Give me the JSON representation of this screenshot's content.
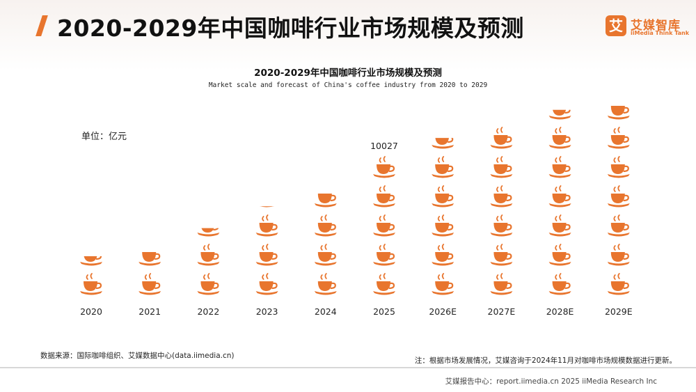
{
  "header": {
    "title": "2020-2029年中国咖啡行业市场规模及预测",
    "logo_mark": "艾",
    "logo_cn": "艾媒智库",
    "logo_en": "iiMedia Think Tank"
  },
  "colors": {
    "accent": "#e8752e",
    "cup": "#e8752e"
  },
  "icons": {
    "cup": "coffee-cup-icon"
  },
  "chart_data": {
    "type": "bar",
    "title": "2020-2029年中国咖啡行业市场规模及预测",
    "subtitle": "Market scale and forecast of China's coffee industry from 2020 to 2029",
    "unit": "单位：亿元",
    "categories": [
      "2020",
      "2021",
      "2022",
      "2023",
      "2024",
      "2025",
      "2026E",
      "2027E",
      "2028E",
      "2029E"
    ],
    "values": [
      3000,
      3817,
      4895,
      6235,
      7893,
      10027,
      11120,
      12109,
      13015,
      13908
    ],
    "pictograph_unit_value": 2000
  },
  "source": "数据来源：国际咖啡组织、艾媒数据中心(data.iimedia.cn)",
  "note": "注：根据市场发展情况，艾媒咨询于2024年11月对咖啡市场规模数据进行更新。",
  "footer": "艾媒报告中心：report.iimedia.cn  2025 iiMedia Research Inc"
}
